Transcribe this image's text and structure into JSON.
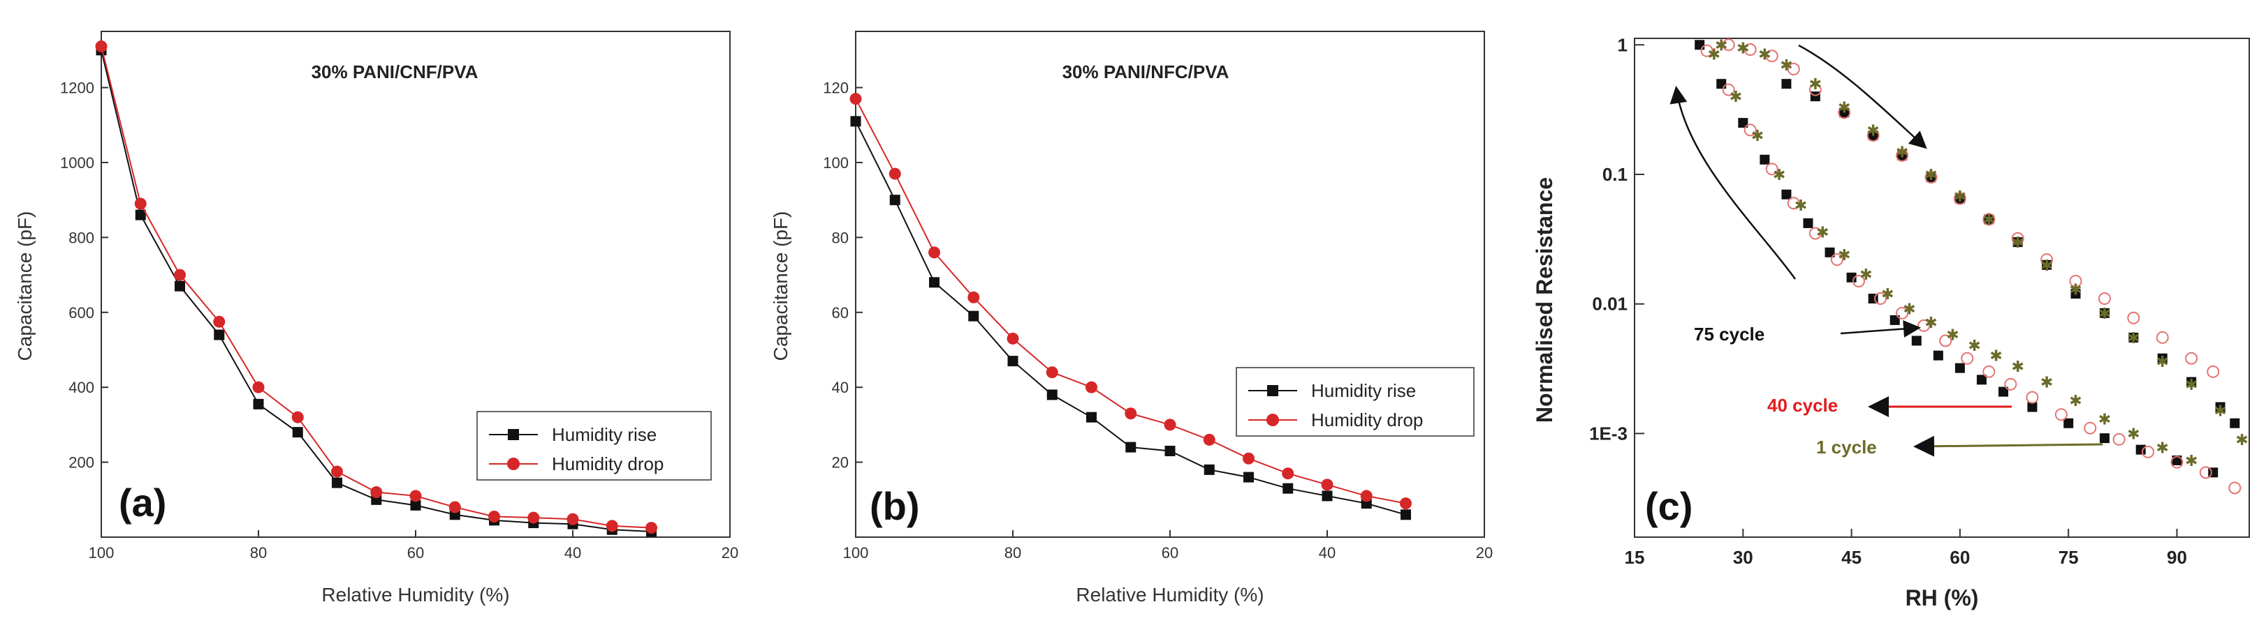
{
  "colors": {
    "rise": "#111111",
    "drop": "#d62728",
    "c75": "#111111",
    "c40": "#e57373",
    "c1": "#6b6b2a",
    "annot40": "#e31b1b",
    "annot1": "#6b6b2a"
  },
  "chart_data": [
    {
      "id": "a",
      "type": "line",
      "title": "30% PANI/CNF/PVA",
      "panel_label": "(a)",
      "xlabel": "Relative Humidity (%)",
      "ylabel": "Capacitance (pF)",
      "xlim": [
        100,
        20
      ],
      "ylim": [
        0,
        1350
      ],
      "xticks": [
        100,
        80,
        60,
        40,
        20
      ],
      "yticks": [
        200,
        400,
        600,
        800,
        1000,
        1200
      ],
      "legend": [
        "Humidity rise",
        "Humidity drop"
      ],
      "legend_position": "bottom-right",
      "x": [
        100,
        95,
        90,
        85,
        80,
        75,
        70,
        65,
        60,
        55,
        50,
        45,
        40,
        35,
        30
      ],
      "series": [
        {
          "name": "Humidity rise",
          "marker": "square",
          "values": [
            1300,
            860,
            670,
            540,
            355,
            280,
            145,
            100,
            85,
            60,
            45,
            38,
            35,
            20,
            15
          ]
        },
        {
          "name": "Humidity drop",
          "marker": "circle",
          "values": [
            1310,
            890,
            700,
            575,
            400,
            320,
            175,
            120,
            110,
            80,
            55,
            52,
            48,
            30,
            25
          ]
        }
      ]
    },
    {
      "id": "b",
      "type": "line",
      "title": "30% PANI/NFC/PVA",
      "panel_label": "(b)",
      "xlabel": "Relative Humidity (%)",
      "ylabel": "Capacitance (pF)",
      "xlim": [
        100,
        20
      ],
      "ylim": [
        0,
        135
      ],
      "xticks": [
        100,
        80,
        60,
        40,
        20
      ],
      "yticks": [
        20,
        40,
        60,
        80,
        100,
        120
      ],
      "legend": [
        "Humidity rise",
        "Humidity drop"
      ],
      "legend_position": "right",
      "x": [
        100,
        95,
        90,
        85,
        80,
        75,
        70,
        65,
        60,
        55,
        50,
        45,
        40,
        35,
        30
      ],
      "series": [
        {
          "name": "Humidity rise",
          "marker": "square",
          "values": [
            111,
            90,
            68,
            59,
            47,
            38,
            32,
            24,
            23,
            18,
            16,
            13,
            11,
            9,
            6
          ]
        },
        {
          "name": "Humidity drop",
          "marker": "circle",
          "values": [
            117,
            97,
            76,
            64,
            53,
            44,
            40,
            33,
            30,
            26,
            21,
            17,
            14,
            11,
            9
          ]
        }
      ]
    },
    {
      "id": "c",
      "type": "scatter",
      "panel_label": "(c)",
      "xlabel": "RH (%)",
      "ylabel": "Normalised Resistance",
      "yscale": "log",
      "xlim": [
        15,
        100
      ],
      "ylim_log10": [
        -3.8,
        0.05
      ],
      "xticks": [
        15,
        30,
        45,
        60,
        75,
        90
      ],
      "ytick_values": [
        1,
        0.1,
        0.01,
        0.001
      ],
      "ytick_labels": [
        "1",
        "0.1",
        "0.01",
        "1E-3"
      ],
      "annotations": [
        "75 cycle",
        "40 cycle",
        "1 cycle"
      ],
      "series": [
        {
          "name": "75 cycle",
          "lower": {
            "x": [
              24,
              27,
              30,
              33,
              36,
              39,
              42,
              45,
              48,
              51,
              54,
              57,
              60,
              63,
              66,
              70,
              75,
              80,
              85,
              90,
              95
            ],
            "y": [
              1.0,
              0.5,
              0.25,
              0.13,
              0.07,
              0.042,
              0.025,
              0.016,
              0.011,
              0.0075,
              0.0052,
              0.004,
              0.0032,
              0.0026,
              0.0021,
              0.0016,
              0.0012,
              0.00092,
              0.00075,
              0.00062,
              0.0005
            ]
          },
          "upper": {
            "x": [
              36,
              40,
              44,
              48,
              52,
              56,
              60,
              64,
              68,
              72,
              76,
              80,
              84,
              88,
              92,
              96,
              98
            ],
            "y": [
              0.5,
              0.4,
              0.3,
              0.2,
              0.14,
              0.095,
              0.065,
              0.045,
              0.03,
              0.02,
              0.012,
              0.0085,
              0.0055,
              0.0038,
              0.0025,
              0.0016,
              0.0012
            ]
          }
        },
        {
          "name": "40 cycle",
          "lower": {
            "x": [
              25,
              28,
              31,
              34,
              37,
              40,
              43,
              46,
              49,
              52,
              55,
              58,
              61,
              64,
              67,
              70,
              74,
              78,
              82,
              86,
              90,
              94,
              98
            ],
            "y": [
              0.9,
              0.45,
              0.22,
              0.11,
              0.06,
              0.035,
              0.022,
              0.015,
              0.011,
              0.0085,
              0.0068,
              0.0052,
              0.0038,
              0.003,
              0.0024,
              0.0019,
              0.0014,
              0.0011,
              0.0009,
              0.00072,
              0.0006,
              0.0005,
              0.00038
            ]
          },
          "upper": {
            "x": [
              28,
              31,
              34,
              37,
              40,
              44,
              48,
              52,
              56,
              60,
              64,
              68,
              72,
              76,
              80,
              84,
              88,
              92,
              95
            ],
            "y": [
              1.0,
              0.92,
              0.82,
              0.65,
              0.45,
              0.3,
              0.2,
              0.14,
              0.095,
              0.065,
              0.045,
              0.032,
              0.022,
              0.015,
              0.011,
              0.0078,
              0.0055,
              0.0038,
              0.003
            ]
          }
        },
        {
          "name": "1 cycle",
          "lower": {
            "x": [
              26,
              29,
              32,
              35,
              38,
              41,
              44,
              47,
              50,
              53,
              56,
              59,
              62,
              65,
              68,
              72,
              76,
              80,
              84,
              88,
              92
            ],
            "y": [
              0.85,
              0.4,
              0.2,
              0.1,
              0.058,
              0.036,
              0.024,
              0.017,
              0.012,
              0.0092,
              0.0072,
              0.0058,
              0.0048,
              0.004,
              0.0033,
              0.0025,
              0.0018,
              0.0013,
              0.001,
              0.00078,
              0.00062
            ]
          },
          "upper": {
            "x": [
              27,
              30,
              33,
              36,
              40,
              44,
              48,
              52,
              56,
              60,
              64,
              68,
              72,
              76,
              80,
              84,
              88,
              92,
              96,
              99
            ],
            "y": [
              1.0,
              0.95,
              0.85,
              0.7,
              0.5,
              0.33,
              0.22,
              0.15,
              0.1,
              0.068,
              0.045,
              0.03,
              0.02,
              0.013,
              0.0085,
              0.0055,
              0.0036,
              0.0024,
              0.0015,
              0.0009
            ]
          }
        }
      ]
    }
  ]
}
